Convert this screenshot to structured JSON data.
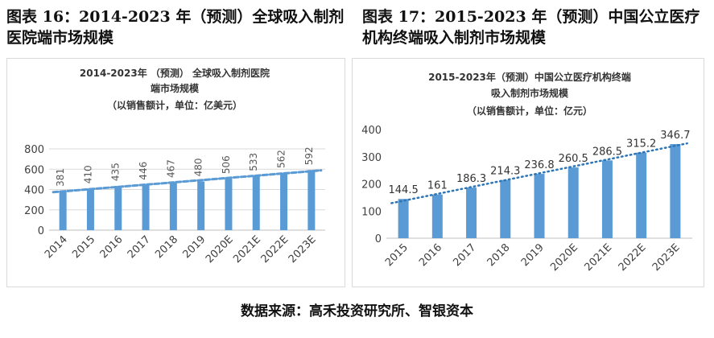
{
  "captions": {
    "left": "图表 16：2014-2023 年（预测）全球吸入制剂医院端市场规模",
    "right": "图表 17：2015-2023 年（预测）中国公立医疗机构终端吸入制剂市场规模"
  },
  "source": "数据来源：高禾投资研究所、智银资本",
  "chart_data": [
    {
      "type": "bar",
      "title": "2014-2023年 （预测） 全球吸入制剂医院端市场规模",
      "subtitle": "（以销售额计，单位：亿美元）",
      "categories": [
        "2014",
        "2015",
        "2016",
        "2017",
        "2018",
        "2019",
        "2020E",
        "2021E",
        "2022E",
        "2023E"
      ],
      "values": [
        381,
        410,
        435,
        446,
        467,
        480,
        506,
        533,
        562,
        592
      ],
      "ylim": [
        0,
        800
      ],
      "yticks": [
        0,
        200,
        400,
        600,
        800
      ],
      "trendline": "linear",
      "grid": true,
      "bar_color": "#5b9bd5",
      "trend_color": "#5b9bd5"
    },
    {
      "type": "bar",
      "title": "2015-2023年（预测）中国公立医疗机构终端吸入制剂市场规模",
      "subtitle": "（以销售额计，单位：亿元）",
      "categories": [
        "2015",
        "2016",
        "2017",
        "2018",
        "2019",
        "2020E",
        "2021E",
        "2022E",
        "2023E"
      ],
      "values": [
        144.5,
        161,
        186.3,
        214.3,
        236.8,
        260.5,
        286.5,
        315.2,
        346.7
      ],
      "ylim": [
        0,
        400
      ],
      "yticks": [
        0,
        100,
        200,
        300,
        400
      ],
      "trendline": "linear",
      "grid": false,
      "bar_color": "#5b9bd5",
      "trend_color": "#2e75b6"
    }
  ]
}
